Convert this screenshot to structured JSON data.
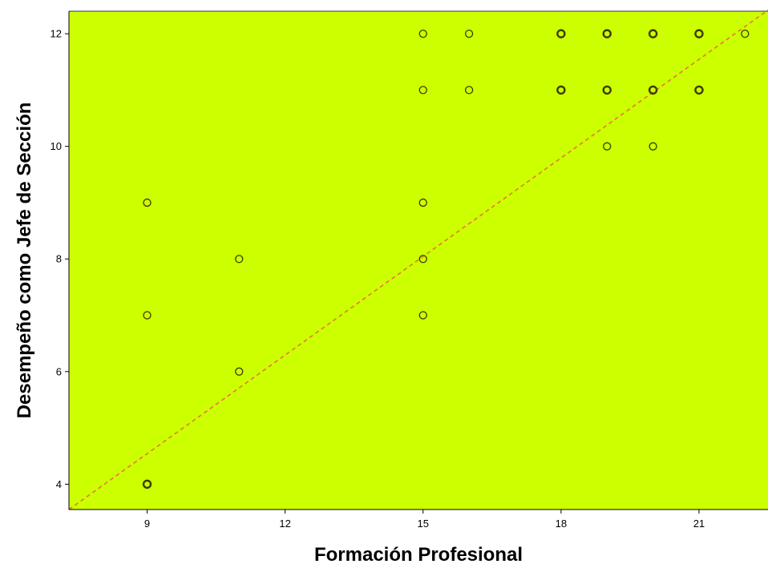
{
  "chart_data": {
    "type": "scatter",
    "title": "",
    "xlabel": "Formación Profesional",
    "ylabel": "Desempeño como Jefe de Sección",
    "xlim": [
      7.3,
      22.5
    ],
    "ylim": [
      3.55,
      12.4
    ],
    "xticks": [
      9,
      12,
      15,
      18,
      21
    ],
    "yticks": [
      4,
      6,
      8,
      10,
      12
    ],
    "grid": false,
    "legend": "none",
    "colors": {
      "plot_background": "#ccff00",
      "marker_edge": "#3b3b00",
      "reference_line": "#e8703a",
      "axis": "#000000"
    },
    "reference_line": {
      "style": "dashed",
      "x": [
        7.3,
        22.5
      ],
      "y": [
        3.55,
        12.42
      ]
    },
    "points": [
      {
        "x": 9,
        "y": 4,
        "count": 2
      },
      {
        "x": 9,
        "y": 7,
        "count": 1
      },
      {
        "x": 9,
        "y": 9,
        "count": 1
      },
      {
        "x": 11,
        "y": 6,
        "count": 1
      },
      {
        "x": 11,
        "y": 8,
        "count": 1
      },
      {
        "x": 15,
        "y": 7,
        "count": 1
      },
      {
        "x": 15,
        "y": 8,
        "count": 1
      },
      {
        "x": 15,
        "y": 9,
        "count": 1
      },
      {
        "x": 15,
        "y": 11,
        "count": 1
      },
      {
        "x": 15,
        "y": 12,
        "count": 1
      },
      {
        "x": 16,
        "y": 11,
        "count": 1
      },
      {
        "x": 16,
        "y": 12,
        "count": 1
      },
      {
        "x": 18,
        "y": 11,
        "count": 2
      },
      {
        "x": 18,
        "y": 12,
        "count": 2
      },
      {
        "x": 19,
        "y": 10,
        "count": 1
      },
      {
        "x": 19,
        "y": 11,
        "count": 3
      },
      {
        "x": 19,
        "y": 12,
        "count": 3
      },
      {
        "x": 20,
        "y": 10,
        "count": 1
      },
      {
        "x": 20,
        "y": 11,
        "count": 3
      },
      {
        "x": 20,
        "y": 12,
        "count": 2
      },
      {
        "x": 21,
        "y": 11,
        "count": 2
      },
      {
        "x": 21,
        "y": 12,
        "count": 2
      },
      {
        "x": 22,
        "y": 12,
        "count": 1
      }
    ]
  }
}
